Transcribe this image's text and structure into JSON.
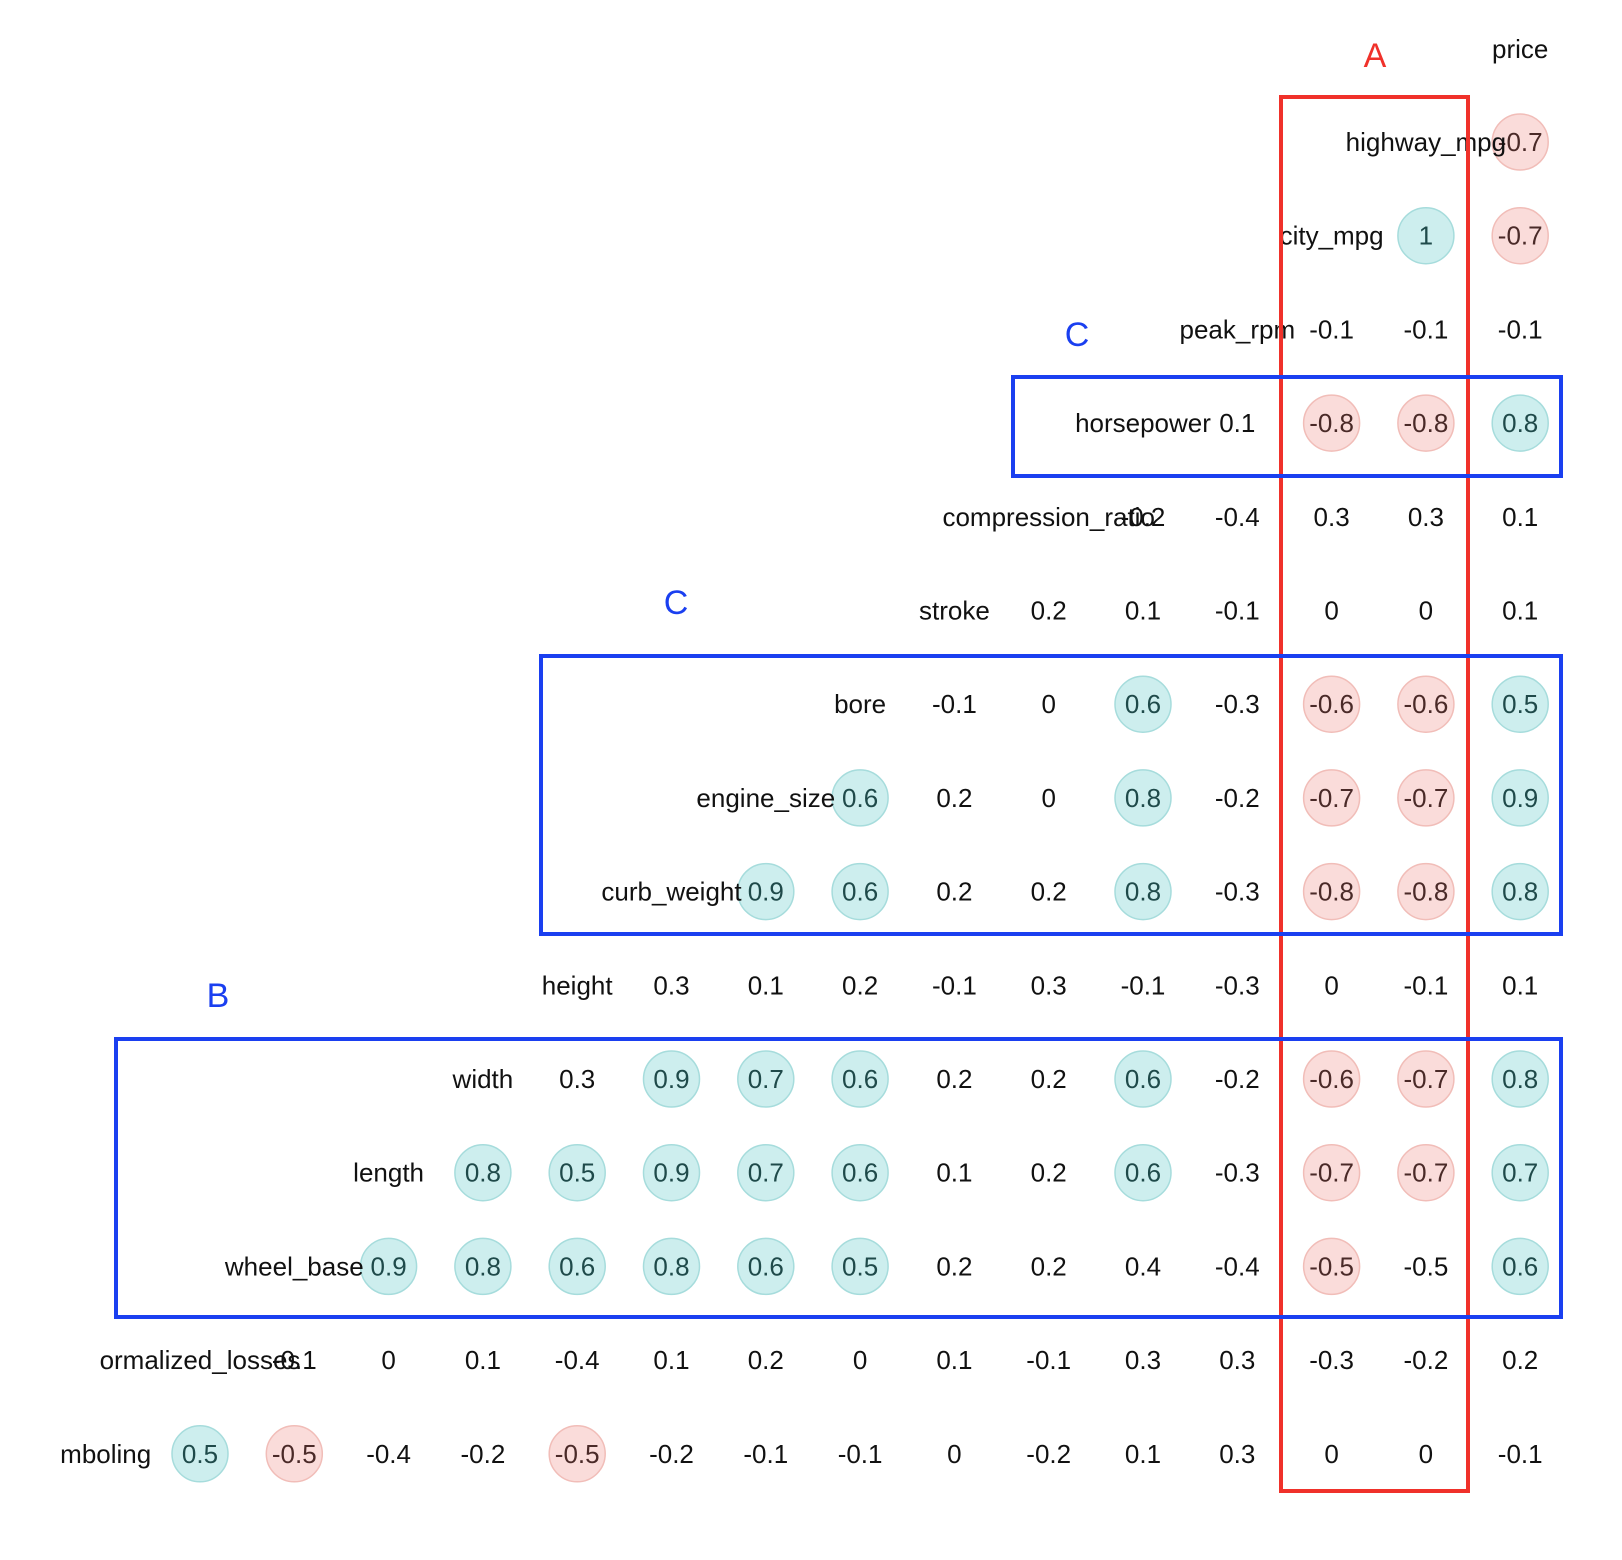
{
  "chart_data": {
    "type": "heatmap",
    "title": "",
    "xlabel": "",
    "ylabel": "",
    "variables": [
      "symboling",
      "normalized_losses",
      "wheel_base",
      "length",
      "width",
      "height",
      "curb_weight",
      "engine_size",
      "bore",
      "stroke",
      "compression_ratio",
      "horsepower",
      "peak_rpm",
      "city_mpg",
      "highway_mpg",
      "price"
    ],
    "row_label_text": [
      "mboling",
      "ormalized_losses",
      "wheel_base",
      "length",
      "width",
      "height",
      "curb_weight",
      "engine_size",
      "bore",
      "stroke",
      "compression_ratio",
      "horsepower",
      "peak_rpm",
      "city_mpg",
      "highway_mpg"
    ],
    "top_label": "price",
    "rows": [
      {
        "variable": "highway_mpg",
        "values": [
          "-0.7"
        ]
      },
      {
        "variable": "city_mpg",
        "values": [
          "1",
          "-0.7"
        ]
      },
      {
        "variable": "peak_rpm",
        "values": [
          "-0.1",
          "-0.1",
          "-0.1"
        ]
      },
      {
        "variable": "horsepower",
        "values": [
          "0.1",
          "-0.8",
          "-0.8",
          "0.8"
        ]
      },
      {
        "variable": "compression_ratio",
        "values": [
          "-0.2",
          "-0.4",
          "0.3",
          "0.3",
          "0.1"
        ]
      },
      {
        "variable": "stroke",
        "values": [
          "0.2",
          "0.1",
          "-0.1",
          "0",
          "0",
          "0.1"
        ]
      },
      {
        "variable": "bore",
        "values": [
          "-0.1",
          "0",
          "0.6",
          "-0.3",
          "-0.6",
          "-0.6",
          "0.5"
        ]
      },
      {
        "variable": "engine_size",
        "values": [
          "0.6",
          "0.2",
          "0",
          "0.8",
          "-0.2",
          "-0.7",
          "-0.7",
          "0.9"
        ]
      },
      {
        "variable": "curb_weight",
        "values": [
          "0.9",
          "0.6",
          "0.2",
          "0.2",
          "0.8",
          "-0.3",
          "-0.8",
          "-0.8",
          "0.8"
        ]
      },
      {
        "variable": "height",
        "values": [
          "0.3",
          "0.1",
          "0.2",
          "-0.1",
          "0.3",
          "-0.1",
          "-0.3",
          "0",
          "-0.1",
          "0.1"
        ]
      },
      {
        "variable": "width",
        "values": [
          "0.3",
          "0.9",
          "0.7",
          "0.6",
          "0.2",
          "0.2",
          "0.6",
          "-0.2",
          "-0.6",
          "-0.7",
          "0.8"
        ]
      },
      {
        "variable": "length",
        "values": [
          "0.8",
          "0.5",
          "0.9",
          "0.7",
          "0.6",
          "0.1",
          "0.2",
          "0.6",
          "-0.3",
          "-0.7",
          "-0.7",
          "0.7"
        ]
      },
      {
        "variable": "wheel_base",
        "values": [
          "0.9",
          "0.8",
          "0.6",
          "0.8",
          "0.6",
          "0.5",
          "0.2",
          "0.2",
          "0.4",
          "-0.4",
          "-0.5",
          "-0.5",
          "0.6"
        ]
      },
      {
        "variable": "normalized_losses",
        "values": [
          "-0.1",
          "0",
          "0.1",
          "-0.4",
          "0.1",
          "0.2",
          "0",
          "0.1",
          "-0.1",
          "0.3",
          "0.3",
          "-0.3",
          "-0.2",
          "0.2"
        ]
      },
      {
        "variable": "symboling",
        "values": [
          "0.5",
          "-0.5",
          "-0.4",
          "-0.2",
          "-0.5",
          "-0.2",
          "-0.1",
          "-0.1",
          "0",
          "-0.2",
          "0.1",
          "0.3",
          "0",
          "0",
          "-0.1"
        ]
      }
    ],
    "highlight_rule": "circle drawn when |r| >= 0.5 (except city_mpg/highway_mpg -0.5 cells which are uncircled in one case)",
    "uncircled_exceptions": [
      [
        "wheel_base",
        "highway_mpg"
      ]
    ],
    "colors": {
      "positive_fill": "#cdeeee",
      "positive_stroke": "#a6dcdc",
      "negative_fill": "#fadcda",
      "negative_stroke": "#f1bdb8",
      "red_box": "#f0312a",
      "blue_box": "#1a3ff0",
      "text": "#111111"
    },
    "annotations": [
      {
        "label": "A",
        "color": "red",
        "encloses_columns": [
          "highway_mpg"
        ],
        "encloses_rows": [
          "highway_mpg",
          "city_mpg",
          "peak_rpm",
          "horsepower",
          "compression_ratio",
          "stroke",
          "bore",
          "engine_size",
          "curb_weight",
          "height",
          "width",
          "length",
          "wheel_base",
          "normalized_losses",
          "symboling"
        ]
      },
      {
        "label": "C",
        "color": "blue",
        "encloses_rows": [
          "horsepower"
        ]
      },
      {
        "label": "C",
        "color": "blue",
        "encloses_rows": [
          "bore",
          "engine_size",
          "curb_weight"
        ]
      },
      {
        "label": "B",
        "color": "blue",
        "encloses_rows": [
          "width",
          "length",
          "wheel_base"
        ]
      }
    ]
  }
}
